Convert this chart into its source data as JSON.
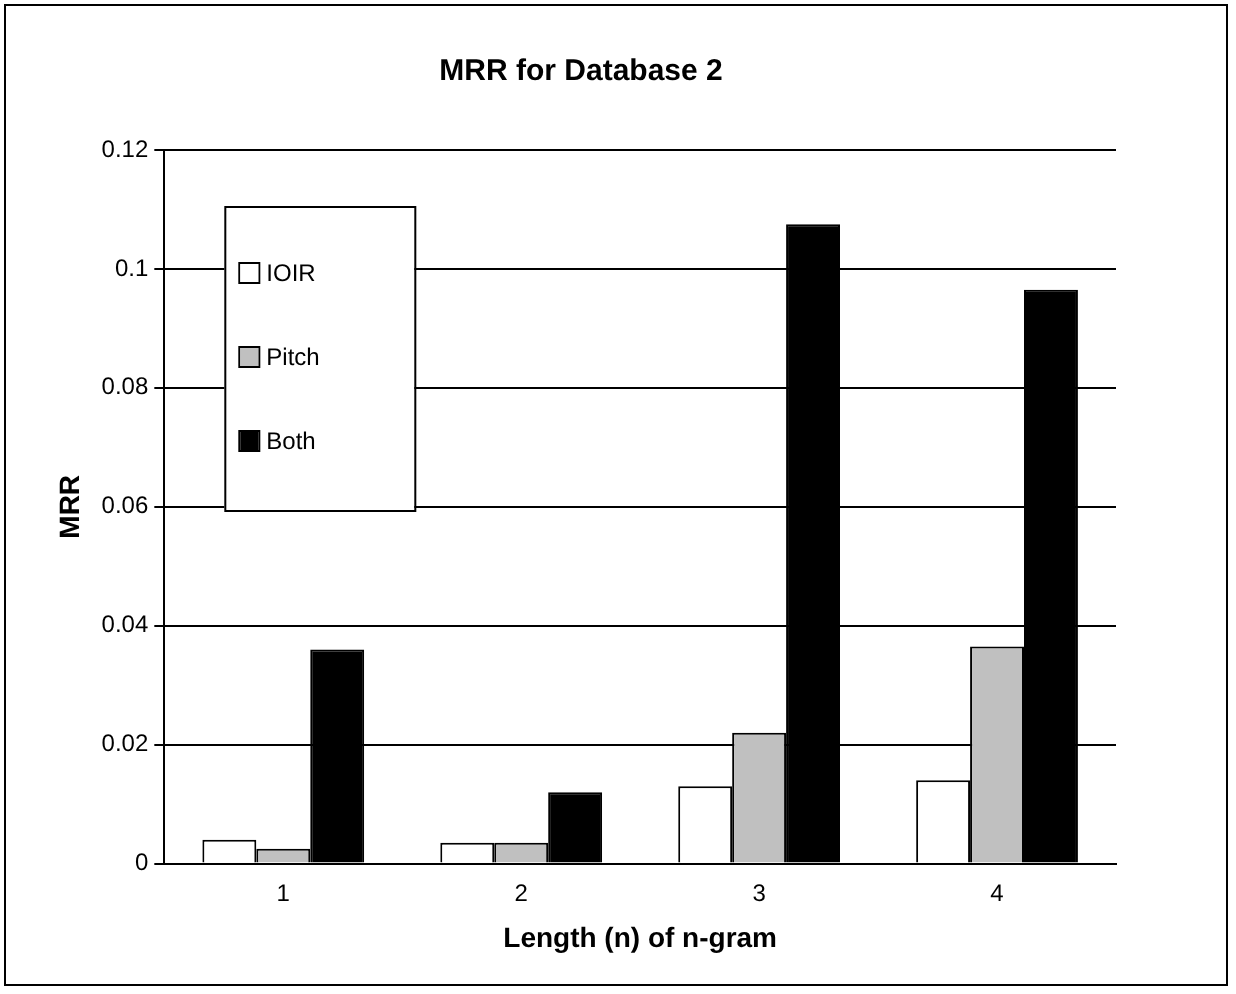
{
  "chart_data": {
    "type": "bar",
    "title": "MRR for Database 2",
    "xlabel": "Length (n) of n-gram",
    "ylabel": "MRR",
    "categories": [
      "1",
      "2",
      "3",
      "4"
    ],
    "series": [
      {
        "name": "IOIR",
        "color": "#ffffff",
        "values": [
          0.004,
          0.0035,
          0.013,
          0.014
        ]
      },
      {
        "name": "Pitch",
        "color": "#c0c0c0",
        "values": [
          0.0025,
          0.0035,
          0.022,
          0.0365
        ]
      },
      {
        "name": "Both",
        "color": "#000000",
        "values": [
          0.036,
          0.012,
          0.1075,
          0.0965
        ]
      }
    ],
    "ylim": [
      0,
      0.12
    ],
    "yticks": [
      0,
      0.02,
      0.04,
      0.06,
      0.08,
      0.1,
      0.12
    ],
    "grid": "y",
    "legend": "top left"
  }
}
